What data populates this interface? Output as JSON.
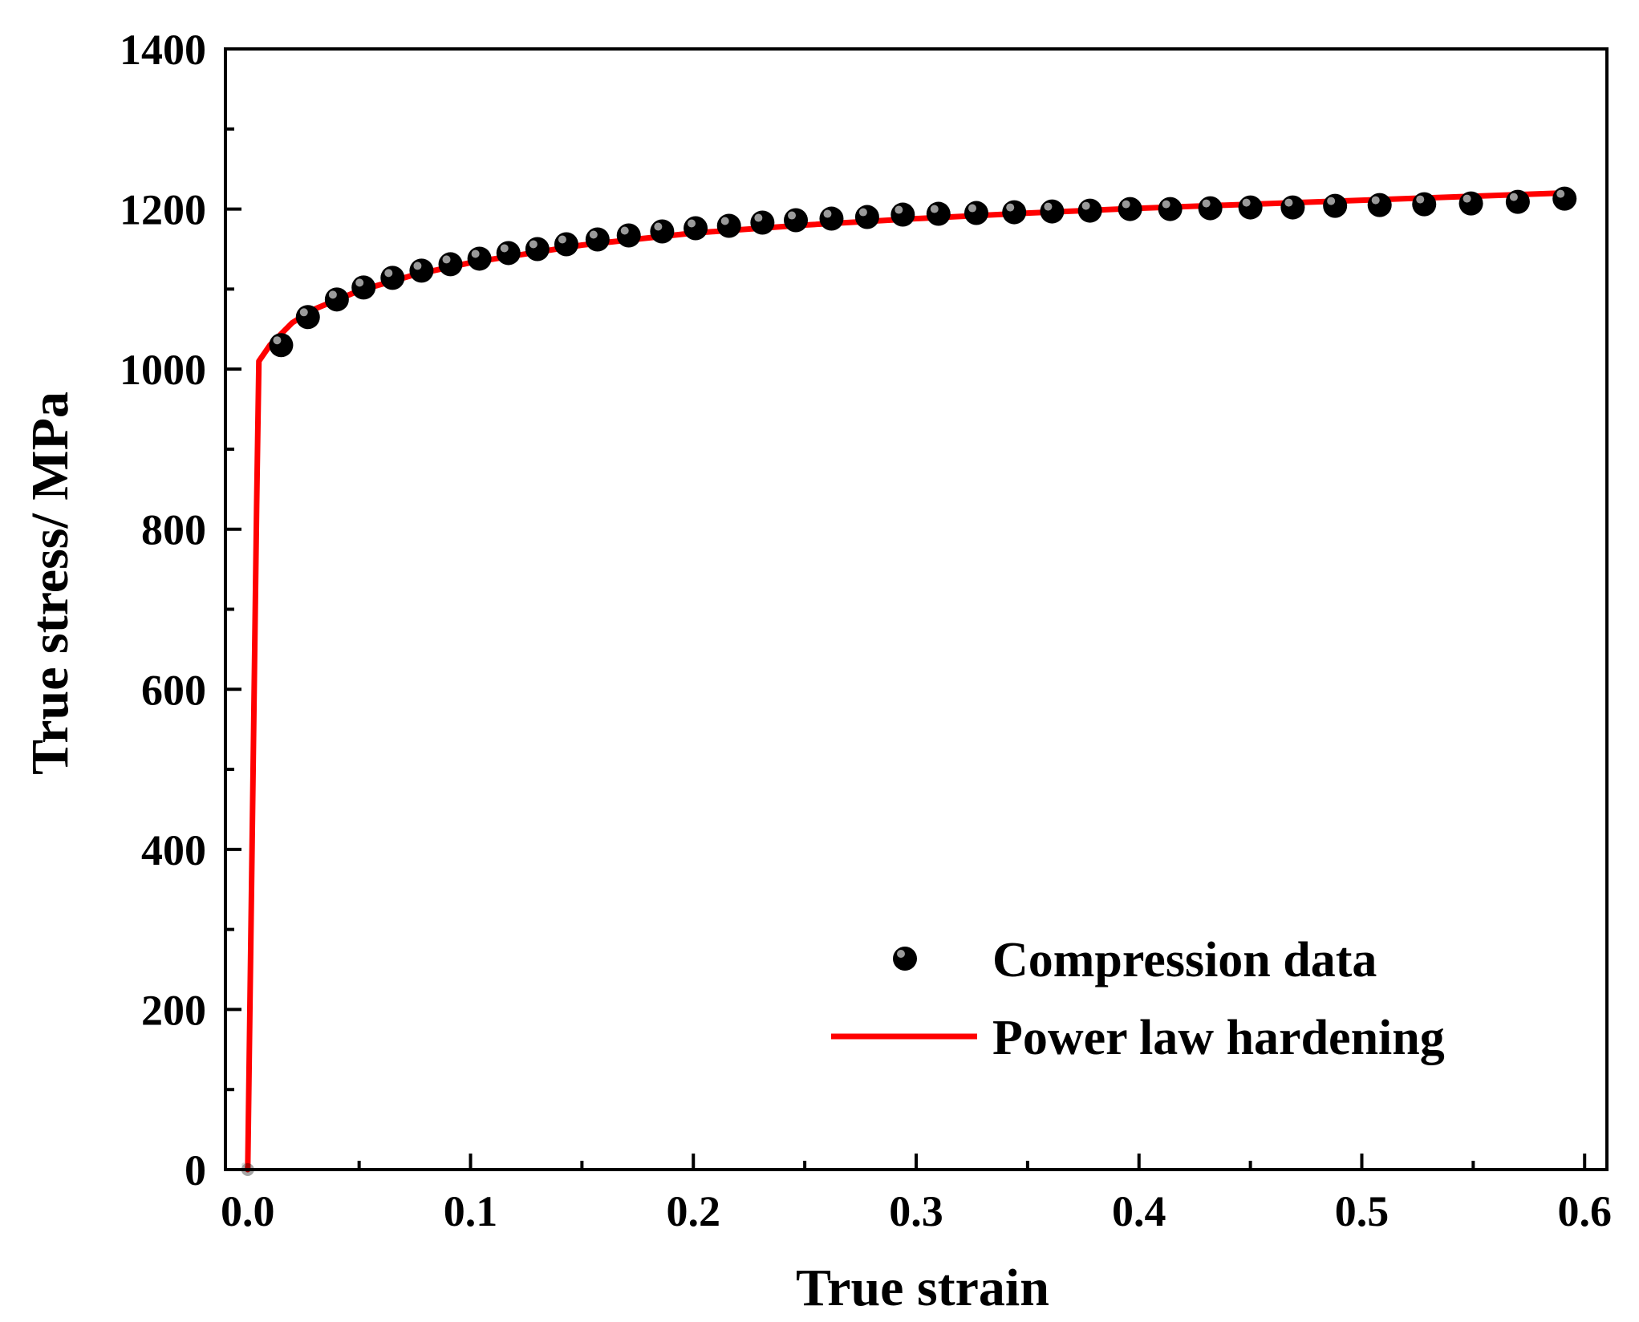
{
  "chart_data": {
    "type": "line",
    "title": "",
    "xlabel": "True strain",
    "ylabel": "True stress/ MPa",
    "xlim": [
      -0.01,
      0.61
    ],
    "ylim": [
      0,
      1400
    ],
    "xticks": [
      0.0,
      0.1,
      0.2,
      0.3,
      0.4,
      0.5,
      0.6
    ],
    "xtick_labels": [
      "0.0",
      "0.1",
      "0.2",
      "0.3",
      "0.4",
      "0.5",
      "0.6"
    ],
    "yticks": [
      0,
      200,
      400,
      600,
      800,
      1000,
      1200,
      1400
    ],
    "ytick_labels": [
      "0",
      "200",
      "400",
      "600",
      "800",
      "1000",
      "1200",
      "1400"
    ],
    "grid": false,
    "legend_position": "bottom-right",
    "series": [
      {
        "name": "Compression data",
        "style": "scatter",
        "color": "#000000",
        "x": [
          0.0,
          0.015,
          0.027,
          0.04,
          0.052,
          0.065,
          0.078,
          0.091,
          0.104,
          0.117,
          0.13,
          0.143,
          0.157,
          0.171,
          0.186,
          0.201,
          0.216,
          0.231,
          0.246,
          0.262,
          0.278,
          0.294,
          0.31,
          0.327,
          0.344,
          0.361,
          0.378,
          0.396,
          0.414,
          0.432,
          0.45,
          0.469,
          0.488,
          0.508,
          0.528,
          0.549,
          0.57,
          0.591
        ],
        "y": [
          0,
          1030,
          1065,
          1087,
          1102,
          1114,
          1123,
          1131,
          1138,
          1145,
          1150,
          1156,
          1162,
          1167,
          1172,
          1176,
          1179,
          1183,
          1186,
          1188,
          1190,
          1193,
          1194,
          1195,
          1196,
          1197,
          1198,
          1200,
          1200,
          1201,
          1202,
          1202,
          1204,
          1205,
          1206,
          1207,
          1209,
          1213
        ]
      },
      {
        "name": "Power law hardening",
        "style": "line",
        "color": "#ff0000",
        "x": [
          0.0,
          0.002,
          0.004,
          0.005,
          0.01,
          0.02,
          0.03,
          0.05,
          0.075,
          0.1,
          0.15,
          0.2,
          0.25,
          0.3,
          0.35,
          0.4,
          0.45,
          0.5,
          0.55,
          0.59
        ],
        "y": [
          0,
          410,
          830,
          1010,
          1030,
          1058,
          1075,
          1098,
          1118,
          1133,
          1155,
          1170,
          1180,
          1188,
          1195,
          1201,
          1206,
          1211,
          1216,
          1220
        ]
      }
    ]
  }
}
